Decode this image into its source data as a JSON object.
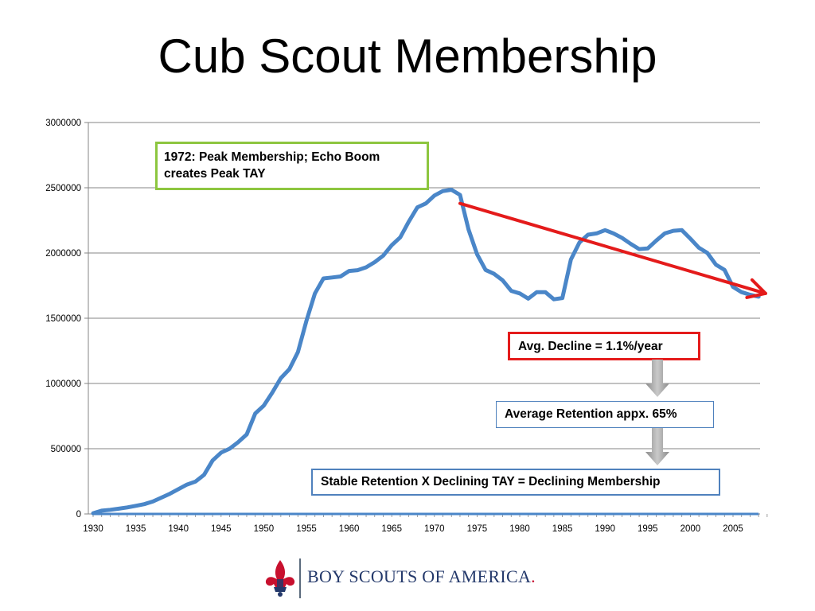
{
  "slide": {
    "title": "Cub Scout Membership"
  },
  "annotations": {
    "peak": "1972:  Peak Membership; Echo Boom creates Peak TAY",
    "decline": "Avg. Decline = 1.1%/year",
    "retention": "Average Retention appx. 65%",
    "stable": "Stable Retention  X  Declining TAY  =  Declining Membership"
  },
  "logo": {
    "text": "BOY SCOUTS OF AMERICA",
    "trailing_mark": ".",
    "icon": "fleur-de-lis-icon"
  },
  "colors": {
    "series": "#4a86c8",
    "trend_arrow": "#e41b1b",
    "peak_box_border": "#8dc63f",
    "decline_box_border": "#e41b1b",
    "info_box_border": "#4f81bd",
    "grid": "#868686",
    "down_arrow": "#a6a6a6"
  },
  "chart_data": {
    "type": "line",
    "title": "",
    "xlabel": "",
    "ylabel": "",
    "xlim": [
      1930,
      2009
    ],
    "ylim": [
      0,
      3000000
    ],
    "x_ticks": [
      "1930",
      "1935",
      "1940",
      "1945",
      "1950",
      "1955",
      "1960",
      "1965",
      "1970",
      "1975",
      "1980",
      "1985",
      "1990",
      "1995",
      "2000",
      "2005"
    ],
    "y_ticks": [
      "0",
      "500000",
      "1000000",
      "1500000",
      "2000000",
      "2500000",
      "3000000"
    ],
    "grid": "horizontal",
    "legend": "none",
    "series": [
      {
        "x": [
          1930,
          1931,
          1932,
          1933,
          1934,
          1935,
          1936,
          1937,
          1938,
          1939,
          1940,
          1941,
          1942,
          1943,
          1944,
          1945,
          1946,
          1947,
          1948,
          1949,
          1950,
          1951,
          1952,
          1953,
          1954,
          1955,
          1956,
          1957,
          1958,
          1959,
          1960,
          1961,
          1962,
          1963,
          1964,
          1965,
          1966,
          1967,
          1968,
          1969,
          1970,
          1971,
          1972,
          1973,
          1974,
          1975,
          1976,
          1977,
          1978,
          1979,
          1980,
          1981,
          1982,
          1983,
          1984,
          1985,
          1986,
          1987,
          1988,
          1989,
          1990,
          1991,
          1992,
          1993,
          1994,
          1995,
          1996,
          1997,
          1998,
          1999,
          2000,
          2001,
          2002,
          2003,
          2004,
          2005,
          2006,
          2007,
          2008
        ],
        "y": [
          5000,
          25000,
          32000,
          40000,
          50000,
          62000,
          75000,
          95000,
          125000,
          155000,
          190000,
          225000,
          248000,
          300000,
          410000,
          470000,
          500000,
          550000,
          610000,
          770000,
          830000,
          930000,
          1040000,
          1110000,
          1240000,
          1480000,
          1690000,
          1805000,
          1812000,
          1820000,
          1862000,
          1868000,
          1890000,
          1930000,
          1980000,
          2060000,
          2120000,
          2240000,
          2350000,
          2380000,
          2440000,
          2475000,
          2485000,
          2445000,
          2180000,
          1990000,
          1870000,
          1840000,
          1790000,
          1710000,
          1690000,
          1650000,
          1700000,
          1700000,
          1645000,
          1655000,
          1950000,
          2080000,
          2140000,
          2150000,
          2175000,
          2150000,
          2115000,
          2070000,
          2030000,
          2035000,
          2095000,
          2150000,
          2170000,
          2175000,
          2110000,
          2040000,
          2000000,
          1910000,
          1870000,
          1740000,
          1700000,
          1680000,
          1665000
        ]
      }
    ],
    "annotations": [
      {
        "type": "trend-arrow",
        "from": [
          1973,
          2380000
        ],
        "to": [
          2009,
          1690000
        ]
      }
    ]
  }
}
